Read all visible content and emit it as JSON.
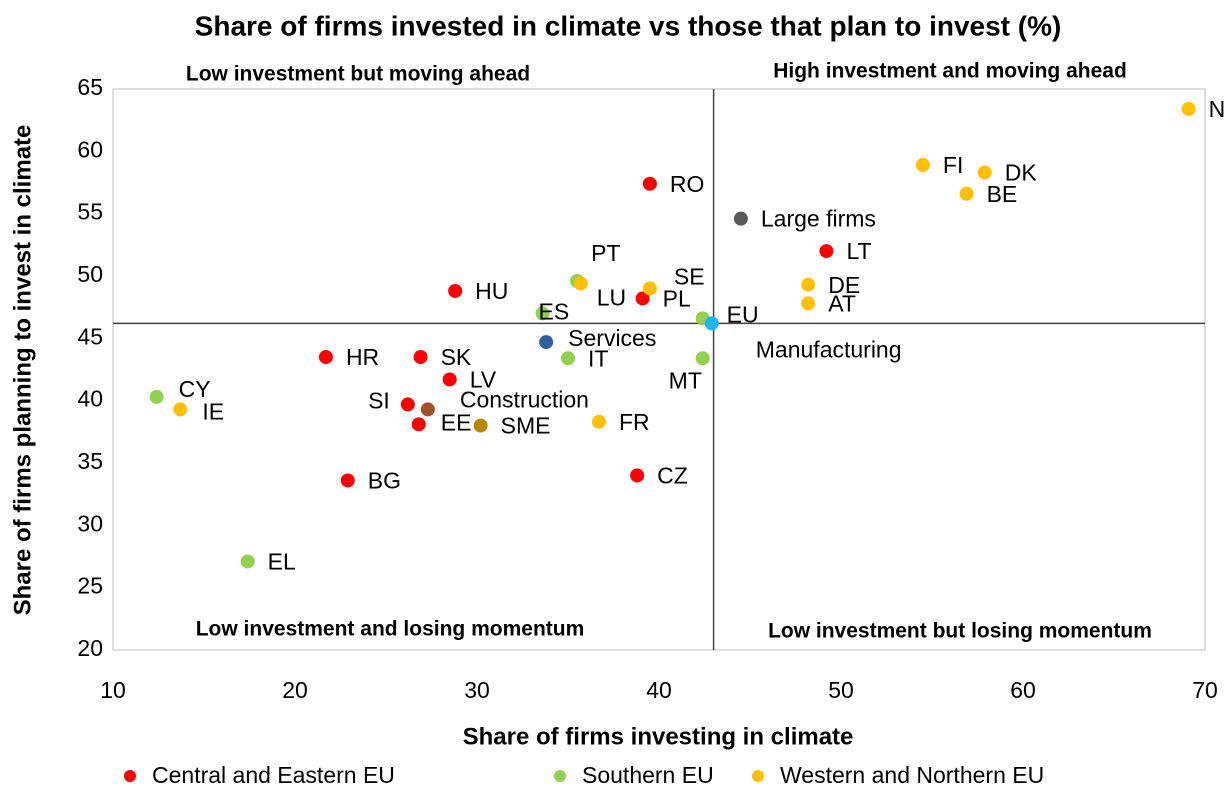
{
  "chart_data": {
    "type": "scatter",
    "title": "Share of firms invested in climate vs those that plan to invest (%)",
    "x_label": "Share of firms investing in climate",
    "y_label": "Share of firms planning to invest in climate",
    "xlim": [
      10,
      70
    ],
    "ylim": [
      20,
      65
    ],
    "xticks": [
      10,
      20,
      30,
      40,
      50,
      60,
      70
    ],
    "yticks": [
      20,
      25,
      30,
      35,
      40,
      45,
      50,
      55,
      60,
      65
    ],
    "reference_lines": {
      "x": 43.0,
      "y": 46.2
    },
    "quadrant_labels": [
      "Low investment but moving ahead",
      "High investment and moving ahead",
      "Low investment and losing momentum",
      "Low investment but losing momentum"
    ],
    "series": [
      {
        "name": "Central and Eastern EU",
        "color": "#ff0000",
        "labels": [
          "RO",
          "HU",
          "PL",
          "LT",
          "HR",
          "SK",
          "LV",
          "SI",
          "EE",
          "BG",
          "CZ"
        ],
        "x": [
          39.5,
          28.8,
          39.1,
          49.2,
          21.7,
          26.9,
          28.5,
          26.2,
          26.8,
          22.9,
          38.8
        ],
        "values": [
          57.4,
          48.8,
          48.2,
          52.0,
          43.5,
          43.5,
          41.7,
          39.7,
          38.1,
          33.6,
          34.0
        ]
      },
      {
        "name": "Southern EU",
        "color": "#92d050",
        "labels": [
          "PT",
          "ES",
          "IT",
          "MT",
          "EU",
          "CY",
          "EL"
        ],
        "x": [
          35.5,
          33.6,
          35.0,
          42.4,
          42.4,
          12.4,
          17.4
        ],
        "values": [
          49.6,
          47.0,
          43.4,
          43.4,
          46.6,
          40.3,
          27.1
        ]
      },
      {
        "name": "Western and Northern EU",
        "color": "#ffc000",
        "labels": [
          "N…",
          "FI",
          "DK",
          "BE",
          "DE",
          "AT",
          "SE",
          "LU",
          "FR",
          "IE"
        ],
        "x": [
          69.1,
          54.5,
          57.9,
          56.9,
          48.2,
          48.2,
          39.5,
          35.7,
          36.7,
          13.7
        ],
        "values": [
          63.4,
          58.9,
          58.3,
          56.6,
          49.3,
          47.8,
          49.0,
          49.4,
          38.3,
          39.3
        ]
      }
    ],
    "highlights": [
      {
        "label": "Large firms",
        "color": "#595959",
        "x": 44.5,
        "y": 54.6
      },
      {
        "label": "Services",
        "color": "#2e5f9e",
        "x": 33.8,
        "y": 44.7
      },
      {
        "label": "Manufacturing",
        "color": "#1fb5f0",
        "x": 42.9,
        "y": 46.2
      },
      {
        "label": "Construction",
        "color": "#a0522d",
        "x": 27.3,
        "y": 39.3
      },
      {
        "label": "SME",
        "color": "#b8860b",
        "x": 30.2,
        "y": 38.0
      }
    ]
  }
}
